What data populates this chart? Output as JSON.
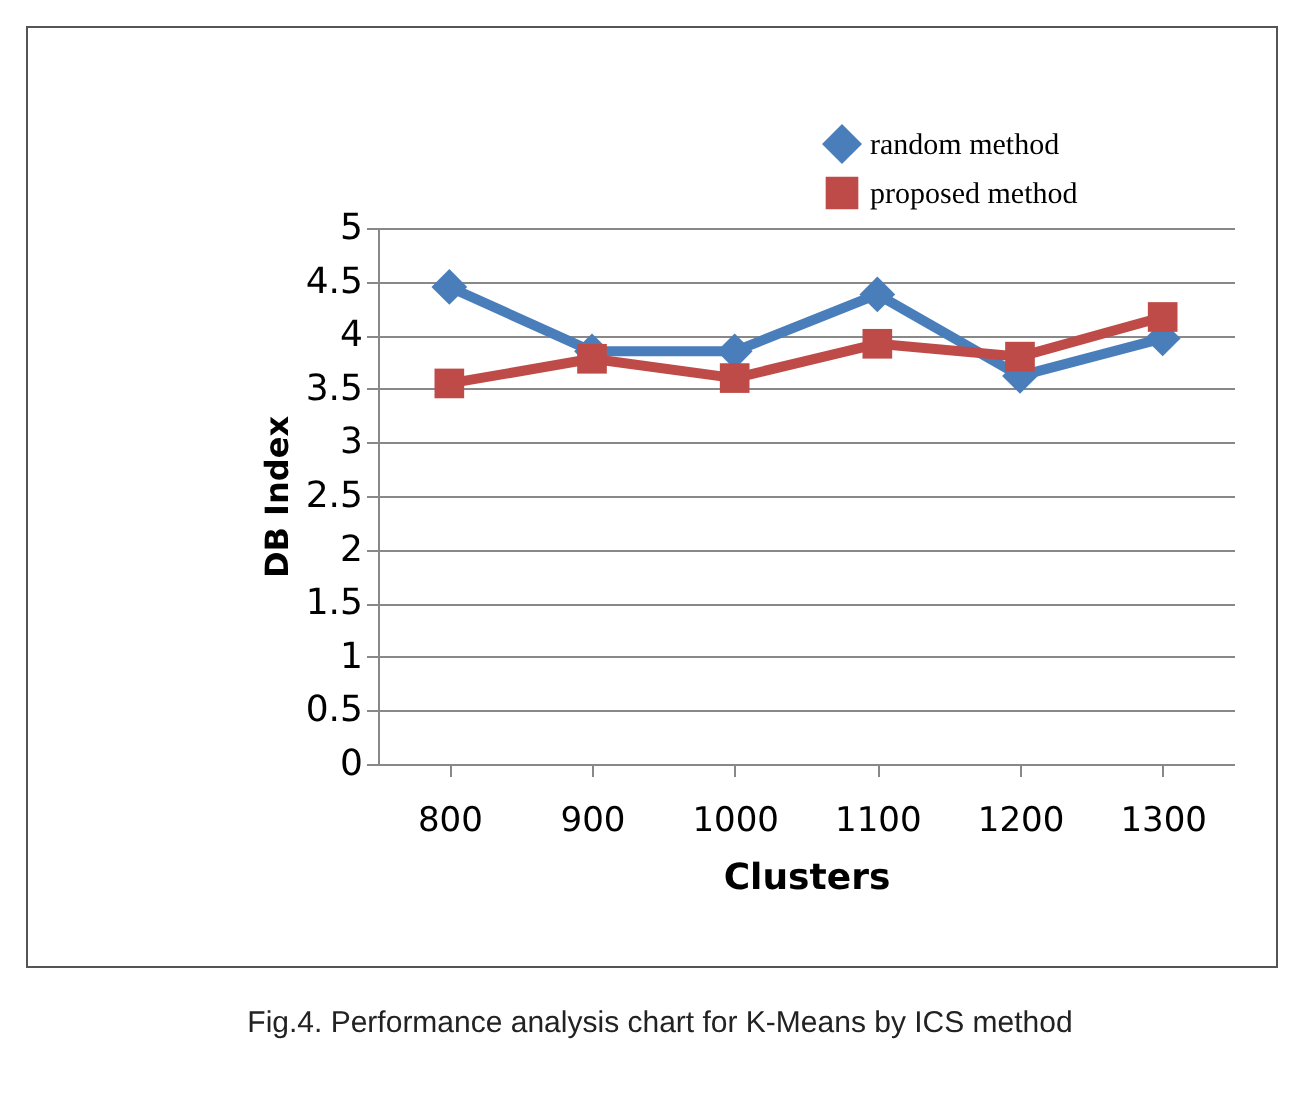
{
  "chart_data": {
    "type": "line",
    "categories": [
      "800",
      "900",
      "1000",
      "1100",
      "1200",
      "1300"
    ],
    "series": [
      {
        "name": "random method",
        "color": "#4a7ebb",
        "marker": "diamond",
        "values": [
          4.45,
          3.85,
          3.85,
          4.38,
          3.62,
          3.97
        ]
      },
      {
        "name": "proposed method",
        "color": "#be4b48",
        "marker": "square",
        "values": [
          3.55,
          3.78,
          3.6,
          3.92,
          3.8,
          4.17
        ]
      }
    ],
    "xlabel": "Clusters",
    "ylabel": "DB Index",
    "ylim": [
      0,
      5
    ],
    "yticks": [
      0,
      0.5,
      1,
      1.5,
      2,
      2.5,
      3,
      3.5,
      4,
      4.5,
      5
    ],
    "grid": "y",
    "legend": "top right",
    "annotations": [
      "Fig.4. Performance analysis chart for K-Means by ICS method"
    ]
  }
}
